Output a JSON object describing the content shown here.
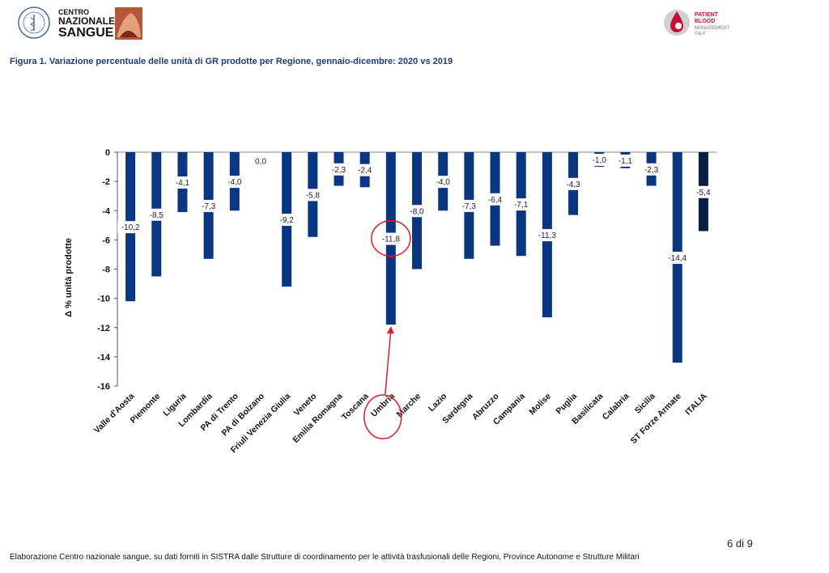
{
  "header": {
    "logo_left_text_1": "CENTRO",
    "logo_left_text_2": "NAZIONALE",
    "logo_left_text_3": "SANGUE",
    "logo_right_text_1": "PATIENT",
    "logo_right_text_2": "BLOOD",
    "logo_right_text_3": "MANAGEMENT",
    "logo_right_text_4": "ITALY"
  },
  "figure": {
    "title": "Figura 1. Variazione percentuale delle unità di GR prodotte per Regione, gennaio-dicembre: 2020 vs 2019"
  },
  "footer": {
    "page": "6 di 9",
    "note": "Elaborazione Centro nazionale sangue, su dati forniti in SISTRA dalle Strutture di coordinamento per le attività trasfusionali delle Regioni, Province Autonome e Strutture Militari"
  },
  "colors": {
    "bar": "#0b3782",
    "total_bar": "#0a1f44",
    "highlight": "#e01b24",
    "title": "#1f3b73"
  },
  "chart_data": {
    "type": "bar",
    "ylabel": "Δ %  unità prodotte",
    "ylim": [
      -16,
      0
    ],
    "yticks": [
      0,
      -2,
      -4,
      -6,
      -8,
      -10,
      -12,
      -14,
      -16
    ],
    "categories": [
      "Valle d'Aosta",
      "Piemonte",
      "Liguria",
      "Lombardia",
      "PA di Trento",
      "PA di Bolzano",
      "Friuli Venezia Giulia",
      "Veneto",
      "Emilia Romagna",
      "Toscana",
      "Umbria",
      "Marche",
      "Lazio",
      "Sardegna",
      "Abruzzo",
      "Campania",
      "Molise",
      "Puglia",
      "Basilicata",
      "Calabria",
      "Sicilia",
      "ST Forze Armate",
      "ITALIA"
    ],
    "values": [
      -10.2,
      -8.5,
      -4.1,
      -7.3,
      -4.0,
      0.0,
      -9.2,
      -5.8,
      -2.3,
      -2.4,
      -11.8,
      -8.0,
      -4.0,
      -7.3,
      -6.4,
      -7.1,
      -11.3,
      -4.3,
      -1.0,
      -1.1,
      -2.3,
      -14.4,
      -5.4
    ],
    "labels": [
      "-10,2",
      "-8,5",
      "-4,1",
      "-7,3",
      "-4,0",
      "0,0",
      "-9,2",
      "-5,8",
      "-2,3",
      "-2,4",
      "-11,8",
      "-8,0",
      "-4,0",
      "-7,3",
      "-6,4",
      "-7,1",
      "-11,3",
      "-4,3",
      "-1,0",
      "-1,1",
      "-2,3",
      "-14,4",
      "-5,4"
    ],
    "highlight_category": "Umbria",
    "total_category": "ITALIA",
    "grid": false,
    "legend": "none"
  }
}
